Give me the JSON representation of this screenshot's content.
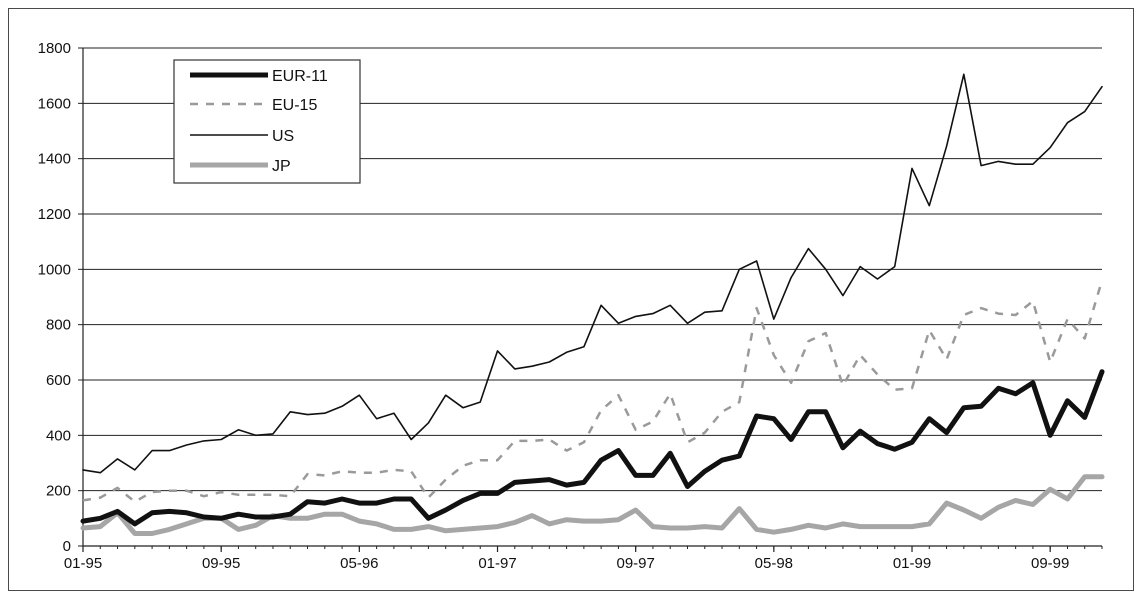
{
  "chart_data": {
    "type": "line",
    "title": "",
    "xlabel": "",
    "ylabel": "",
    "ylim": [
      0,
      1800
    ],
    "y_ticks": [
      "0",
      "200",
      "400",
      "600",
      "800",
      "1000",
      "1200",
      "1400",
      "1600",
      "1800"
    ],
    "x_tick_labels": [
      "01-95",
      "09-95",
      "05-96",
      "01-97",
      "09-97",
      "05-98",
      "01-99",
      "09-99"
    ],
    "grid": true,
    "legend_placement": "top-left",
    "n_points": 60,
    "series": [
      {
        "name": "EUR-11",
        "color": "#111111",
        "style": "thick-solid",
        "values": [
          90,
          100,
          125,
          80,
          120,
          125,
          120,
          105,
          100,
          115,
          105,
          105,
          115,
          160,
          155,
          170,
          155,
          155,
          170,
          170,
          100,
          130,
          165,
          190,
          190,
          230,
          235,
          240,
          220,
          230,
          310,
          345,
          255,
          255,
          335,
          215,
          270,
          310,
          325,
          470,
          460,
          385,
          485,
          485,
          355,
          415,
          370,
          350,
          375,
          460,
          410,
          500,
          505,
          570,
          550,
          590,
          400,
          525,
          465,
          630
        ]
      },
      {
        "name": "EU-15",
        "color": "#9a9a9a",
        "style": "dashed",
        "values": [
          165,
          175,
          210,
          160,
          195,
          200,
          200,
          180,
          195,
          185,
          185,
          185,
          180,
          260,
          255,
          270,
          265,
          265,
          275,
          270,
          175,
          240,
          290,
          310,
          310,
          380,
          380,
          385,
          345,
          375,
          490,
          545,
          420,
          450,
          550,
          375,
          410,
          485,
          520,
          860,
          690,
          590,
          740,
          770,
          580,
          690,
          620,
          565,
          570,
          780,
          675,
          835,
          860,
          840,
          835,
          885,
          665,
          820,
          750,
          960
        ]
      },
      {
        "name": "US",
        "color": "#111111",
        "style": "thin-solid",
        "values": [
          275,
          265,
          315,
          275,
          345,
          345,
          365,
          380,
          385,
          420,
          400,
          405,
          485,
          475,
          480,
          505,
          545,
          460,
          480,
          385,
          445,
          545,
          500,
          520,
          705,
          640,
          650,
          665,
          700,
          720,
          870,
          805,
          830,
          840,
          870,
          805,
          845,
          850,
          1000,
          1030,
          820,
          970,
          1075,
          1000,
          905,
          1010,
          965,
          1010,
          1365,
          1230,
          1445,
          1705,
          1375,
          1390,
          1380,
          1380,
          1440,
          1530,
          1570,
          1660
        ]
      },
      {
        "name": "JP",
        "color": "#a6a6a6",
        "style": "thick-solid",
        "values": [
          65,
          70,
          120,
          45,
          45,
          60,
          80,
          100,
          100,
          60,
          75,
          110,
          100,
          100,
          115,
          115,
          90,
          80,
          60,
          60,
          70,
          55,
          60,
          65,
          70,
          85,
          110,
          80,
          95,
          90,
          90,
          95,
          130,
          70,
          65,
          65,
          70,
          65,
          135,
          60,
          50,
          60,
          75,
          65,
          80,
          70,
          70,
          70,
          70,
          80,
          155,
          130,
          100,
          140,
          165,
          150,
          205,
          170,
          250,
          250
        ]
      }
    ]
  }
}
